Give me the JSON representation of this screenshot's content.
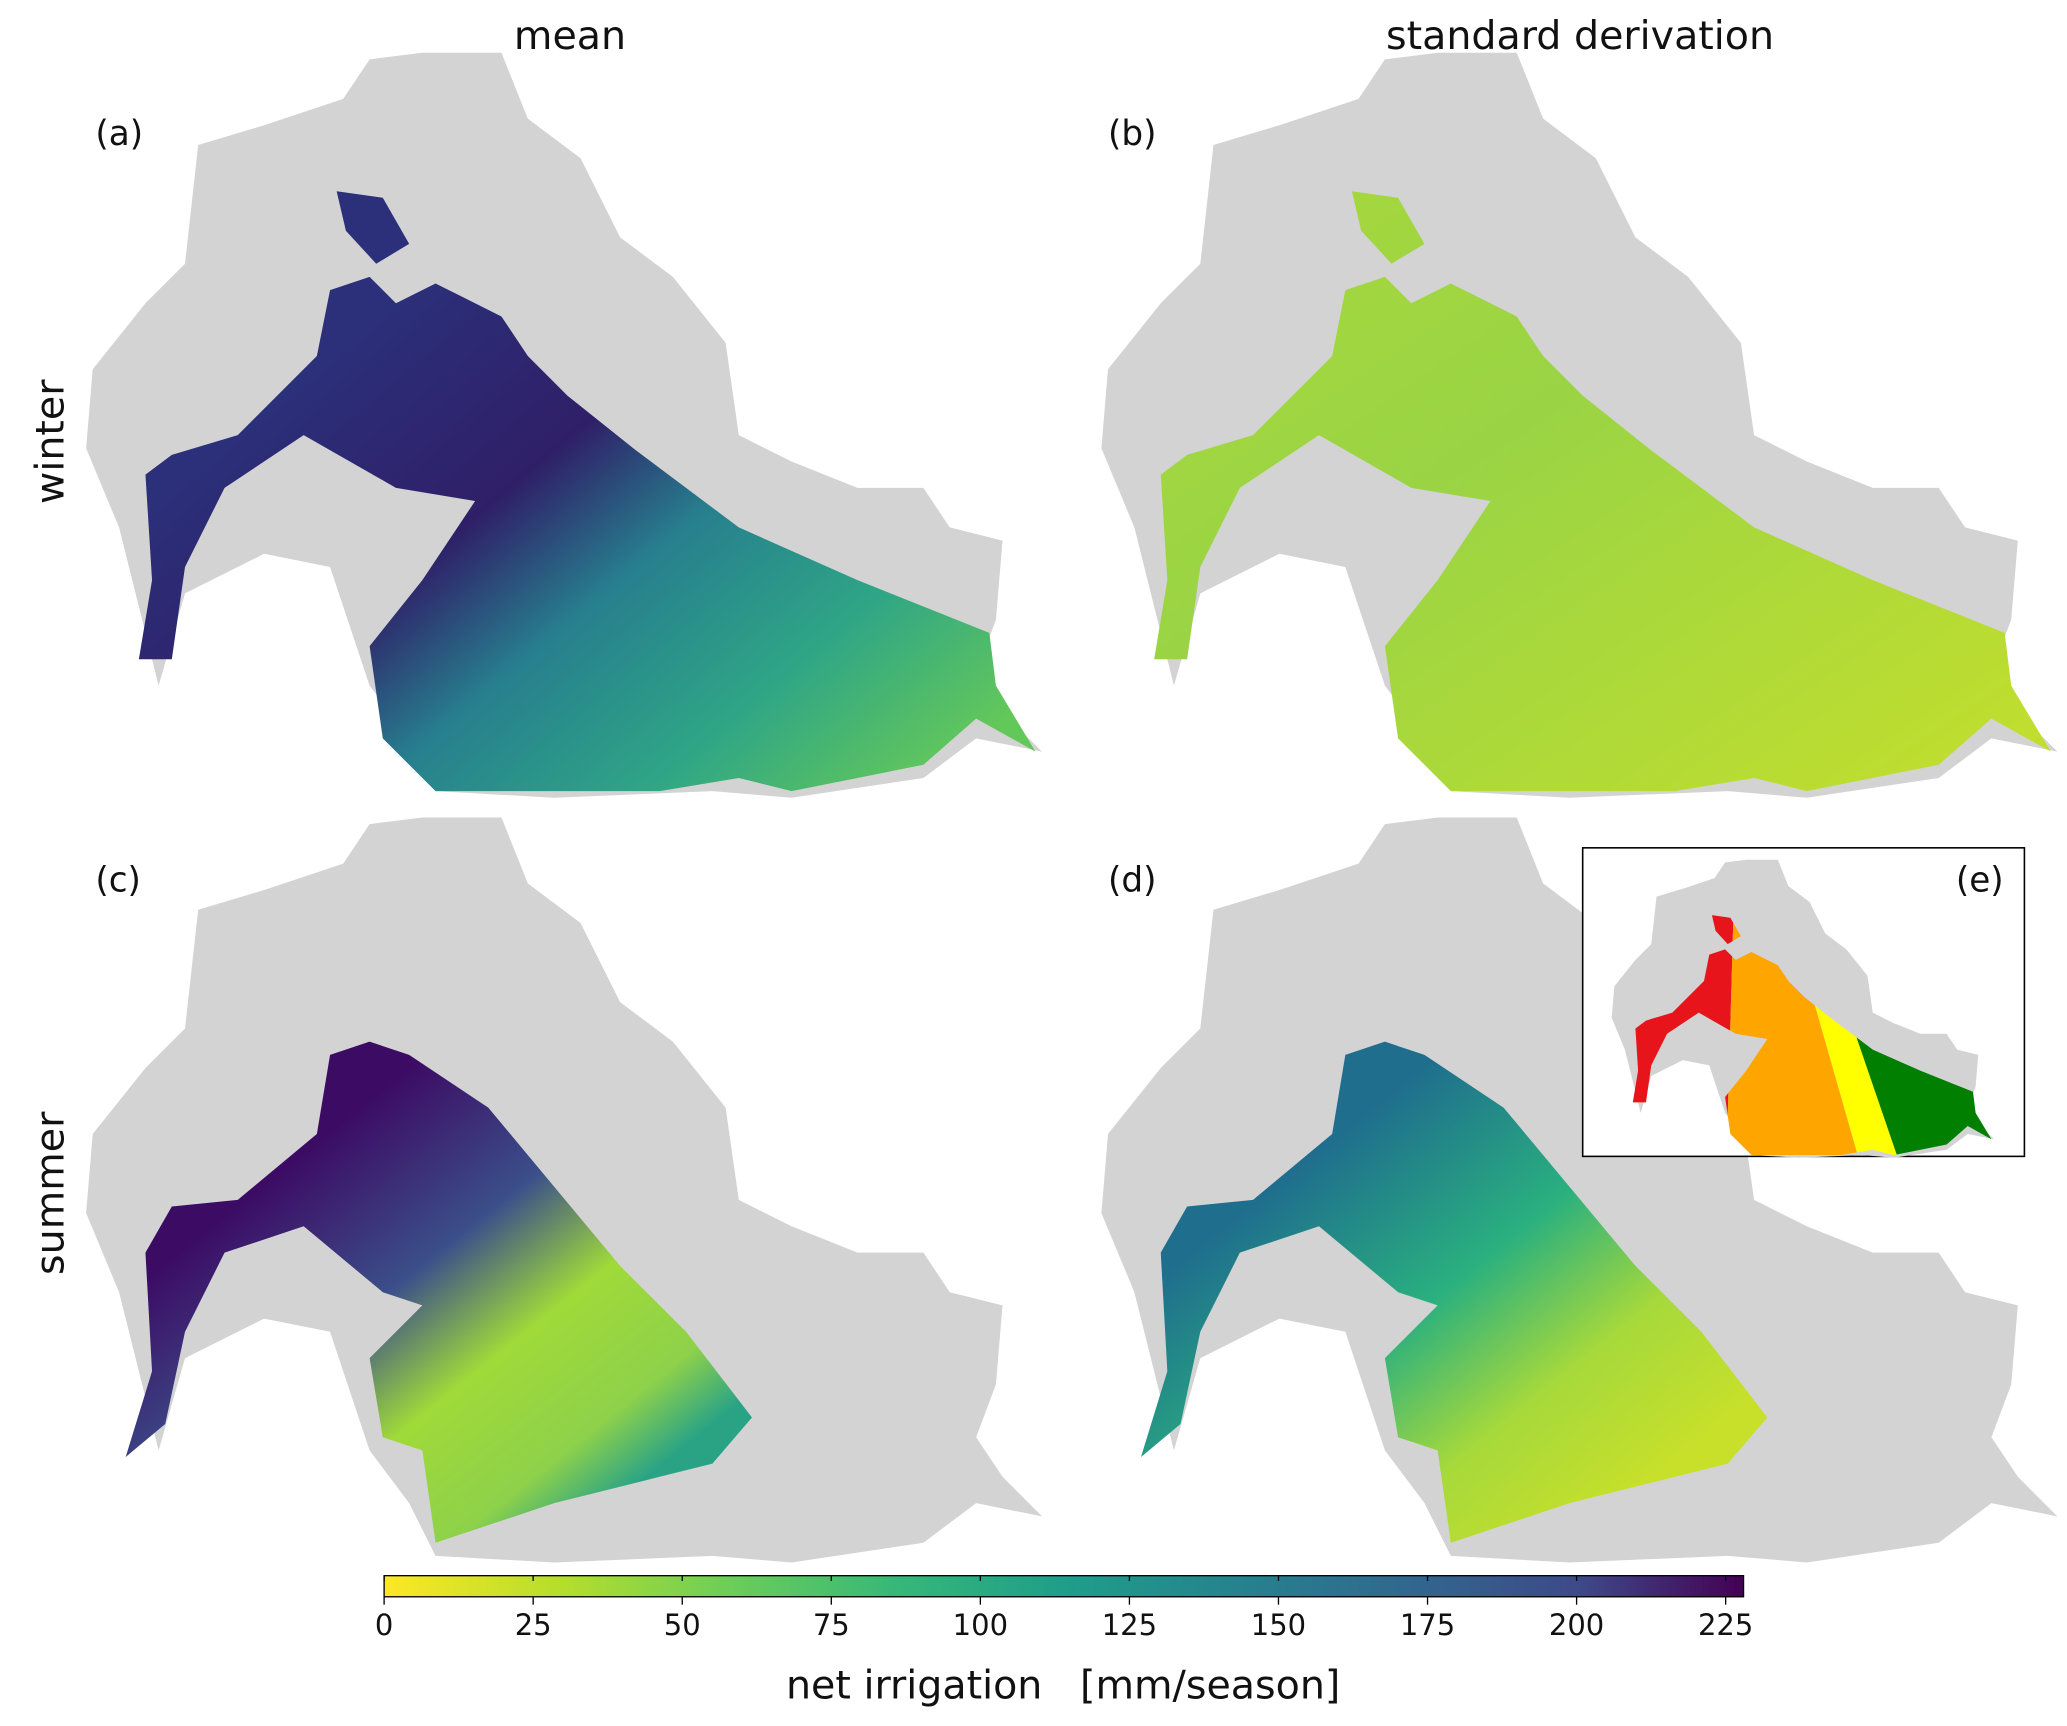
{
  "column_titles": [
    "mean",
    "standard derivation"
  ],
  "row_labels": [
    "winter",
    "summer"
  ],
  "panels": [
    "(a)",
    "(b)",
    "(c)",
    "(d)",
    "(e)"
  ],
  "colorbar": {
    "label": "net irrigation   [mm/season]",
    "lim": [
      0,
      228
    ],
    "ticks": [
      0,
      25,
      50,
      75,
      100,
      125,
      150,
      175,
      200,
      225
    ]
  }
}
